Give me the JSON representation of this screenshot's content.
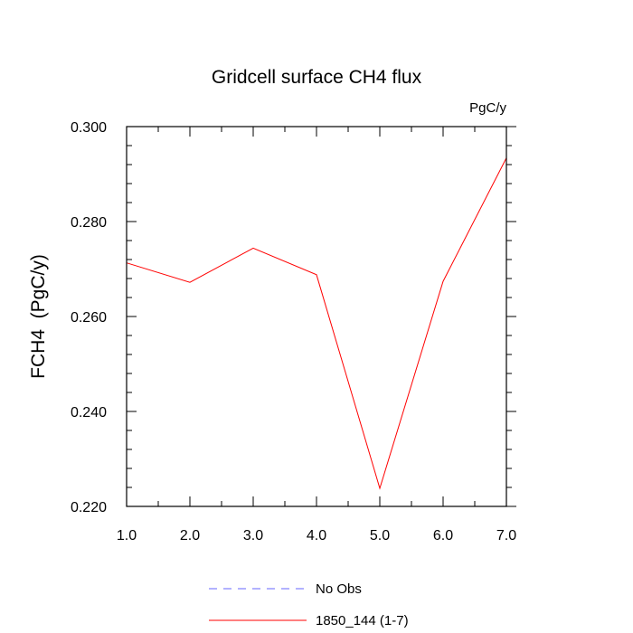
{
  "chart_data": {
    "type": "line",
    "title": "Gridcell surface CH4 flux",
    "units_label": "PgC/y",
    "ylabel": "FCH4  (PgC/y)",
    "xlabel": "",
    "xlim": [
      1.0,
      7.0
    ],
    "ylim": [
      0.22,
      0.3
    ],
    "x_ticks": [
      1.0,
      2.0,
      3.0,
      4.0,
      5.0,
      6.0,
      7.0
    ],
    "x_tick_labels": [
      "1.0",
      "2.0",
      "3.0",
      "4.0",
      "5.0",
      "6.0",
      "7.0"
    ],
    "y_ticks": [
      0.22,
      0.24,
      0.26,
      0.28,
      0.3
    ],
    "y_tick_labels": [
      "0.220",
      "0.240",
      "0.260",
      "0.280",
      "0.300"
    ],
    "y_minor_step": 0.004,
    "x_minor_step": 0.5,
    "grid": false,
    "legend_position": "bottom-center",
    "series": [
      {
        "name": "1850_144 (1-7)",
        "color": "#ff0000",
        "dash": "solid",
        "x": [
          1,
          2,
          3,
          4,
          5,
          6,
          7
        ],
        "y": [
          0.2713,
          0.2672,
          0.2744,
          0.2688,
          0.2238,
          0.2674,
          0.2934
        ]
      }
    ],
    "legend": [
      {
        "label": "No Obs",
        "color": "#6666ff",
        "dash": "dashed"
      },
      {
        "label": "1850_144 (1-7)",
        "color": "#ff0000",
        "dash": "solid"
      }
    ]
  }
}
